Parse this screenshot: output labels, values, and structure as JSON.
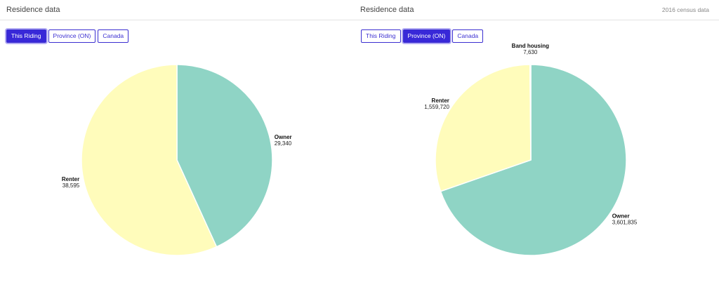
{
  "panels": [
    {
      "title": "Residence data",
      "note": "",
      "tabs": [
        {
          "label": "This Riding",
          "active": true
        },
        {
          "label": "Province (ON)",
          "active": false
        },
        {
          "label": "Canada",
          "active": false
        }
      ]
    },
    {
      "title": "Residence data",
      "note": "2016 census data",
      "tabs": [
        {
          "label": "This Riding",
          "active": false
        },
        {
          "label": "Province (ON)",
          "active": true
        },
        {
          "label": "Canada",
          "active": false
        }
      ]
    }
  ],
  "colors": {
    "owner": "#8fd4c5",
    "renter": "#fffcbb",
    "band_housing": "#ffffff",
    "accent": "#3828d8"
  },
  "chart_data": [
    {
      "type": "pie",
      "slices": [
        {
          "label": "Owner",
          "value": 29340,
          "value_label": "29,340",
          "color": "#8fd4c5"
        },
        {
          "label": "Renter",
          "value": 38595,
          "value_label": "38,595",
          "color": "#fffcbb"
        }
      ]
    },
    {
      "type": "pie",
      "slices": [
        {
          "label": "Owner",
          "value": 3601835,
          "value_label": "3,601,835",
          "color": "#8fd4c5"
        },
        {
          "label": "Renter",
          "value": 1559720,
          "value_label": "1,559,720",
          "color": "#fffcbb"
        },
        {
          "label": "Band housing",
          "value": 7630,
          "value_label": "7,630",
          "color": "#ffffff"
        }
      ]
    }
  ]
}
